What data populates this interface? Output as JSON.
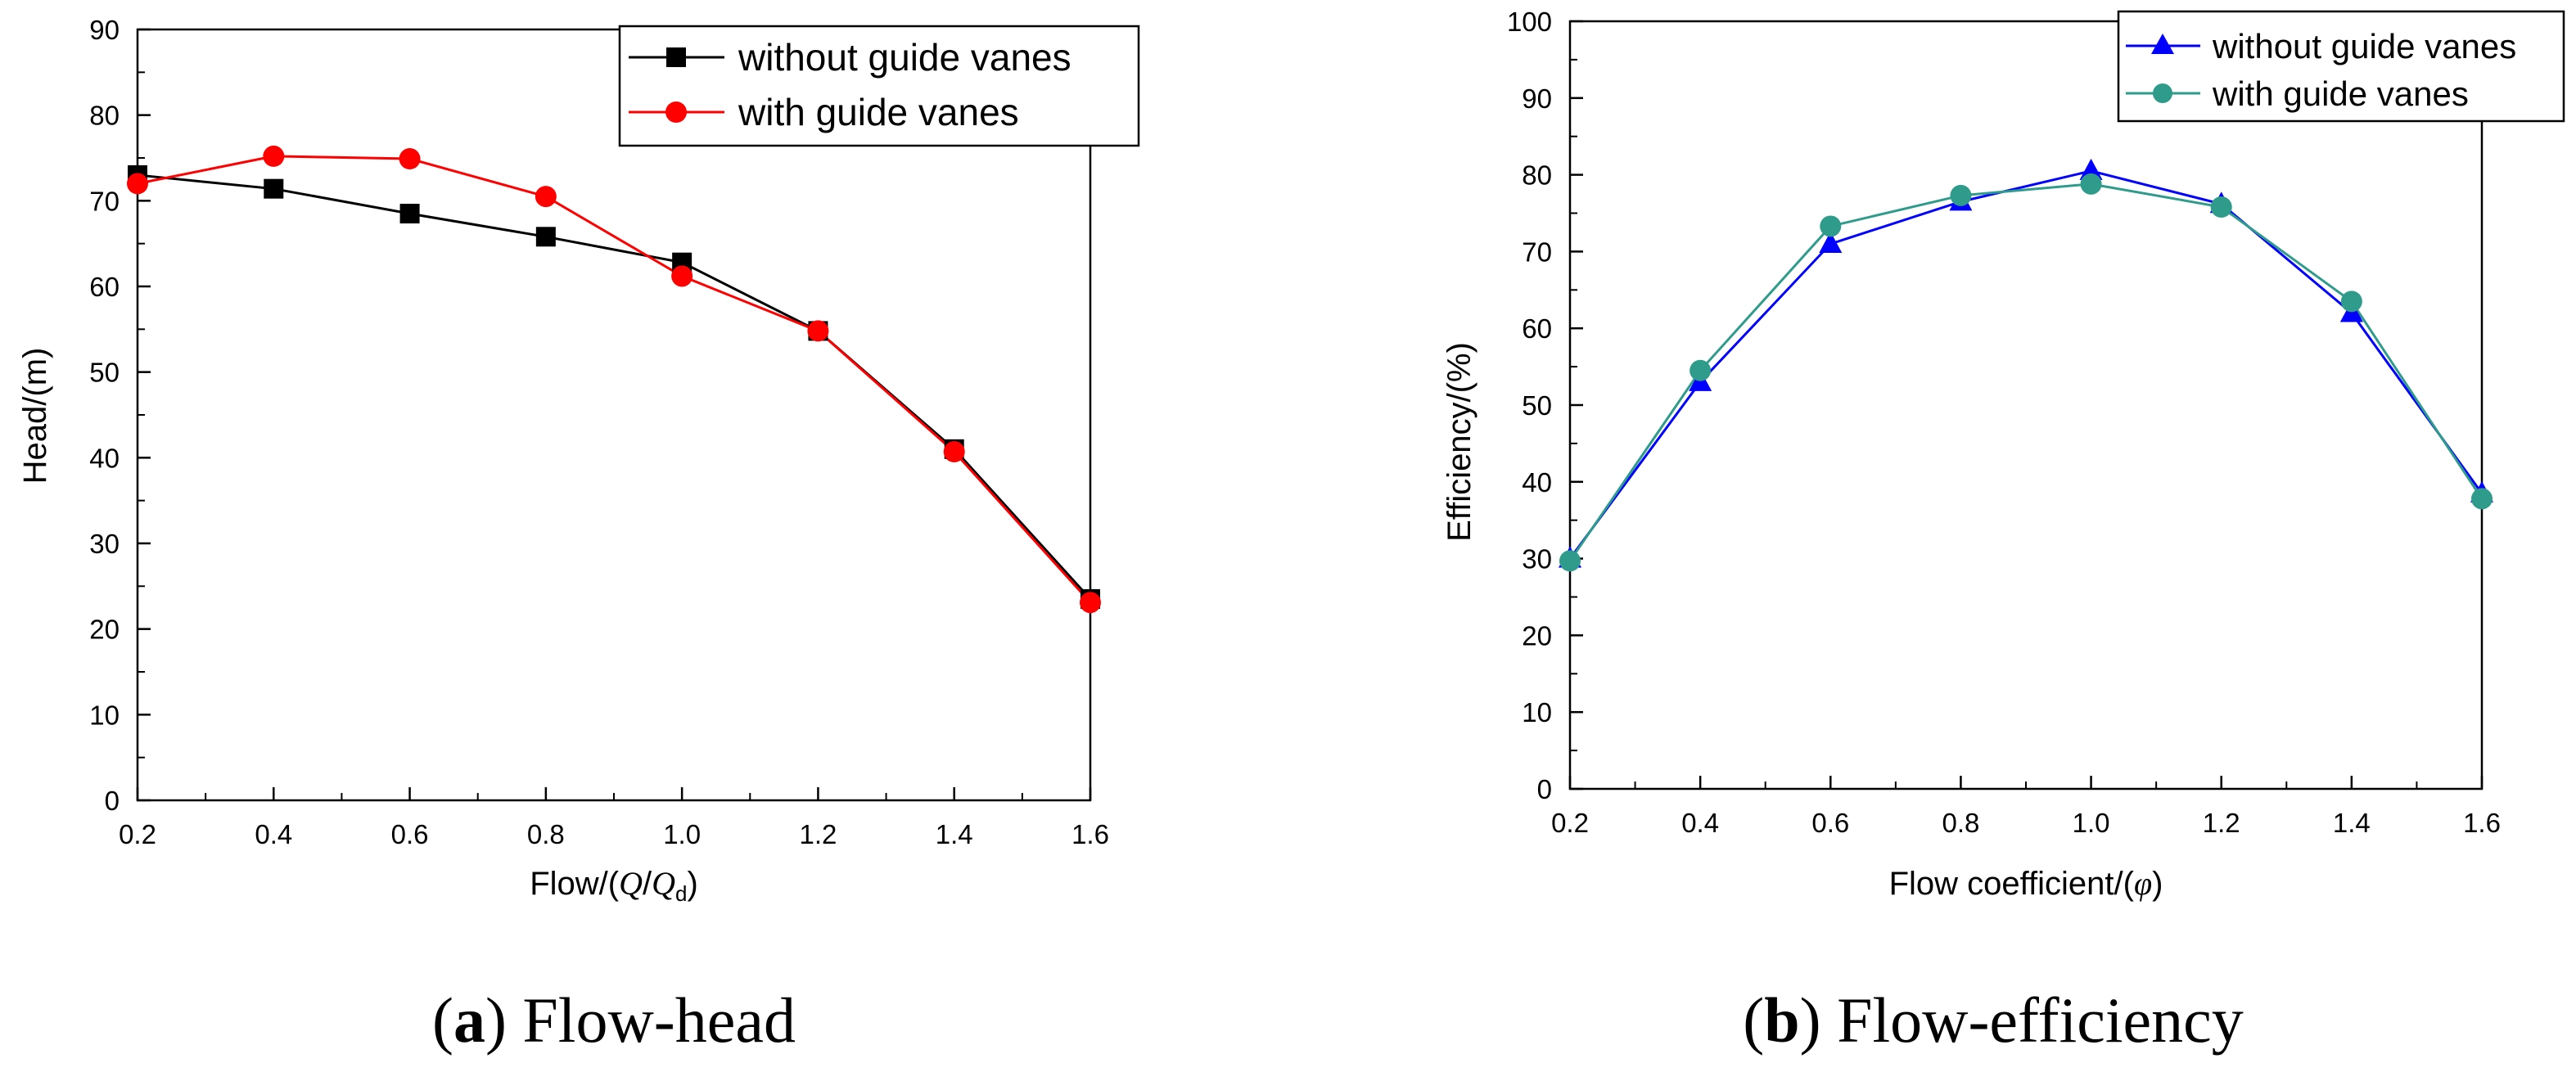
{
  "chart_data": [
    {
      "type": "line",
      "caption_label": "a",
      "caption_text": "Flow-head",
      "xlabel_prefix": "Flow/(",
      "xlabel_q": "Q",
      "xlabel_slash": "/",
      "xlabel_qd": "Q",
      "xlabel_sub": "d",
      "xlabel_suffix": ")",
      "ylabel": "Head/(m)",
      "xlim": [
        0.2,
        1.6
      ],
      "ylim": [
        0,
        90
      ],
      "xticks": [
        "0.2",
        "0.4",
        "0.6",
        "0.8",
        "1.0",
        "1.2",
        "1.4",
        "1.6"
      ],
      "yticks": [
        "0",
        "10",
        "20",
        "30",
        "40",
        "50",
        "60",
        "70",
        "80",
        "90"
      ],
      "legend_position": "top-right",
      "x": [
        0.2,
        0.4,
        0.6,
        0.8,
        1.0,
        1.2,
        1.4,
        1.6
      ],
      "series": [
        {
          "name": "without guide vanes",
          "color": "#000000",
          "marker": "square",
          "values": [
            73.0,
            71.4,
            68.5,
            65.8,
            62.8,
            54.8,
            41.0,
            23.5
          ]
        },
        {
          "name": "with guide vanes",
          "color": "#ff0000",
          "marker": "circle",
          "values": [
            72.0,
            75.2,
            74.9,
            70.5,
            61.2,
            54.8,
            40.7,
            23.1
          ]
        }
      ]
    },
    {
      "type": "line",
      "caption_label": "b",
      "caption_text": "Flow-efficiency",
      "xlabel_prefix": "Flow coefficient/(",
      "xlabel_phi": "φ",
      "xlabel_suffix": ")",
      "ylabel": "Efficiency/(%)",
      "xlim": [
        0.2,
        1.6
      ],
      "ylim": [
        0,
        100
      ],
      "xticks": [
        "0.2",
        "0.4",
        "0.6",
        "0.8",
        "1.0",
        "1.2",
        "1.4",
        "1.6"
      ],
      "yticks": [
        "0",
        "10",
        "20",
        "30",
        "40",
        "50",
        "60",
        "70",
        "80",
        "90",
        "100"
      ],
      "legend_position": "top-right",
      "x": [
        0.2,
        0.4,
        0.6,
        0.8,
        1.0,
        1.2,
        1.4,
        1.6
      ],
      "series": [
        {
          "name": "without guide vanes",
          "color": "#0000ff",
          "marker": "triangle",
          "values": [
            30.0,
            53.0,
            71.0,
            76.5,
            80.5,
            76.2,
            62.0,
            38.5
          ]
        },
        {
          "name": "with guide vanes",
          "color": "#2e9b8b",
          "marker": "circle",
          "values": [
            29.7,
            54.5,
            73.3,
            77.3,
            78.8,
            75.8,
            63.5,
            37.8
          ]
        }
      ]
    }
  ]
}
